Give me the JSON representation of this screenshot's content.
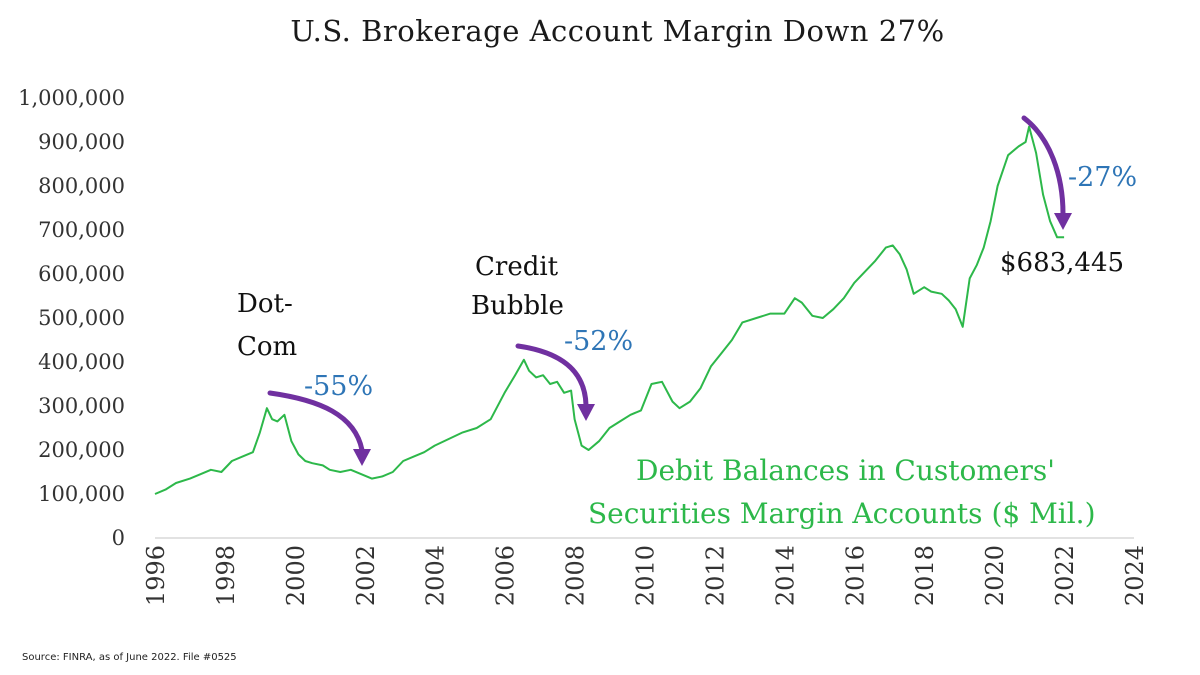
{
  "chart_data": {
    "type": "line",
    "title": "U.S. Brokerage Account Margin Down 27%",
    "xlabel": "",
    "ylabel": "",
    "xlim": [
      1996,
      2024
    ],
    "ylim": [
      0,
      1000000
    ],
    "x_ticks": [
      "1996",
      "1998",
      "2000",
      "2002",
      "2004",
      "2006",
      "2008",
      "2010",
      "2012",
      "2014",
      "2016",
      "2018",
      "2020",
      "2022",
      "2024"
    ],
    "y_ticks": [
      "0",
      "100,000",
      "200,000",
      "300,000",
      "400,000",
      "500,000",
      "600,000",
      "700,000",
      "800,000",
      "900,000",
      "1,000,000"
    ],
    "grid": false,
    "series": [
      {
        "name": "Debit Balances in Customers' Securities Margin Accounts ($ Mil.)",
        "color": "#2db84a",
        "x": [
          1996.0,
          1996.3,
          1996.6,
          1997.0,
          1997.3,
          1997.6,
          1997.9,
          1998.2,
          1998.5,
          1998.8,
          1999.0,
          1999.2,
          1999.35,
          1999.5,
          1999.7,
          1999.9,
          2000.1,
          2000.3,
          2000.5,
          2000.8,
          2001.0,
          2001.3,
          2001.6,
          2001.9,
          2002.2,
          2002.5,
          2002.8,
          2003.1,
          2003.4,
          2003.7,
          2004.0,
          2004.4,
          2004.8,
          2005.2,
          2005.6,
          2006.0,
          2006.3,
          2006.55,
          2006.7,
          2006.9,
          2007.1,
          2007.3,
          2007.5,
          2007.7,
          2007.9,
          2008.0,
          2008.2,
          2008.4,
          2008.7,
          2009.0,
          2009.3,
          2009.6,
          2009.9,
          2010.2,
          2010.5,
          2010.8,
          2011.0,
          2011.3,
          2011.6,
          2011.9,
          2012.2,
          2012.5,
          2012.8,
          2013.2,
          2013.6,
          2014.0,
          2014.3,
          2014.5,
          2014.8,
          2015.1,
          2015.4,
          2015.7,
          2016.0,
          2016.3,
          2016.6,
          2016.9,
          2017.1,
          2017.3,
          2017.5,
          2017.7,
          2018.0,
          2018.2,
          2018.5,
          2018.7,
          2018.9,
          2019.1,
          2019.3,
          2019.5,
          2019.7,
          2019.9,
          2020.1,
          2020.4,
          2020.7,
          2020.9,
          2021.0,
          2021.2,
          2021.4,
          2021.6,
          2021.8,
          2022.0
        ],
        "values": [
          100000,
          110000,
          125000,
          135000,
          145000,
          155000,
          150000,
          175000,
          185000,
          195000,
          240000,
          295000,
          270000,
          265000,
          280000,
          220000,
          190000,
          175000,
          170000,
          165000,
          155000,
          150000,
          155000,
          145000,
          135000,
          140000,
          150000,
          175000,
          185000,
          195000,
          210000,
          225000,
          240000,
          250000,
          270000,
          330000,
          370000,
          405000,
          380000,
          365000,
          370000,
          350000,
          355000,
          330000,
          335000,
          270000,
          210000,
          200000,
          220000,
          250000,
          265000,
          280000,
          290000,
          350000,
          355000,
          310000,
          295000,
          310000,
          340000,
          390000,
          420000,
          450000,
          490000,
          500000,
          510000,
          510000,
          545000,
          535000,
          505000,
          500000,
          520000,
          545000,
          580000,
          605000,
          630000,
          660000,
          665000,
          645000,
          610000,
          555000,
          570000,
          560000,
          555000,
          540000,
          520000,
          480000,
          590000,
          620000,
          660000,
          720000,
          800000,
          870000,
          890000,
          900000,
          935000,
          875000,
          780000,
          720000,
          683445,
          683445
        ]
      }
    ],
    "annotations": {
      "dotcom_label_1": "Dot-",
      "dotcom_label_2": "Com",
      "dotcom_change": "-55%",
      "credit_label_1": "Credit",
      "credit_label_2": "Bubble",
      "credit_change": "-52%",
      "recent_change": "-27%",
      "recent_value": "$683,445",
      "series_label_1": "Debit Balances in Customers'",
      "series_label_2": "Securities Margin Accounts ($ Mil.)"
    },
    "arrow_color": "#7030a0"
  },
  "source": "Source: FINRA, as of June 2022. File #0525"
}
